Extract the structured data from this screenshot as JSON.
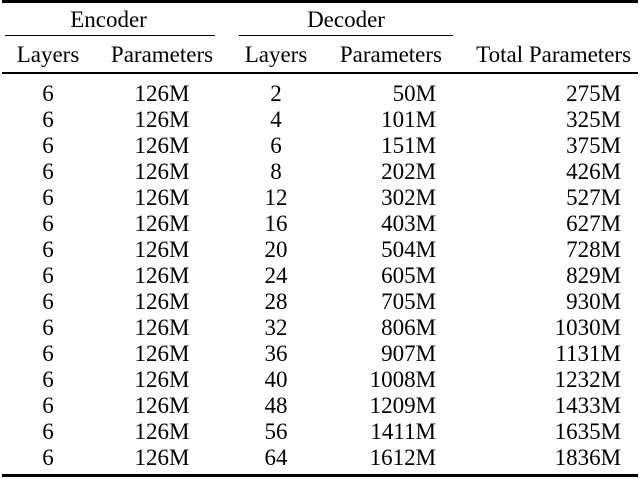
{
  "page": {
    "background": "#ffffff"
  },
  "table": {
    "colors": {
      "text": "#000000",
      "rule": "#000000",
      "background": "#ffffff"
    },
    "column_groups": [
      {
        "label": "Encoder",
        "span": 2
      },
      {
        "label": "Decoder",
        "span": 2
      },
      {
        "label": "",
        "span": 1
      }
    ],
    "columns": [
      "Layers",
      "Parameters",
      "Layers",
      "Parameters",
      "Total Parameters"
    ],
    "rows": [
      [
        "6",
        "126M",
        "2",
        "50M",
        "275M"
      ],
      [
        "6",
        "126M",
        "4",
        "101M",
        "325M"
      ],
      [
        "6",
        "126M",
        "6",
        "151M",
        "375M"
      ],
      [
        "6",
        "126M",
        "8",
        "202M",
        "426M"
      ],
      [
        "6",
        "126M",
        "12",
        "302M",
        "527M"
      ],
      [
        "6",
        "126M",
        "16",
        "403M",
        "627M"
      ],
      [
        "6",
        "126M",
        "20",
        "504M",
        "728M"
      ],
      [
        "6",
        "126M",
        "24",
        "605M",
        "829M"
      ],
      [
        "6",
        "126M",
        "28",
        "705M",
        "930M"
      ],
      [
        "6",
        "126M",
        "32",
        "806M",
        "1030M"
      ],
      [
        "6",
        "126M",
        "36",
        "907M",
        "1131M"
      ],
      [
        "6",
        "126M",
        "40",
        "1008M",
        "1232M"
      ],
      [
        "6",
        "126M",
        "48",
        "1209M",
        "1433M"
      ],
      [
        "6",
        "126M",
        "56",
        "1411M",
        "1635M"
      ],
      [
        "6",
        "126M",
        "64",
        "1612M",
        "1836M"
      ]
    ]
  }
}
